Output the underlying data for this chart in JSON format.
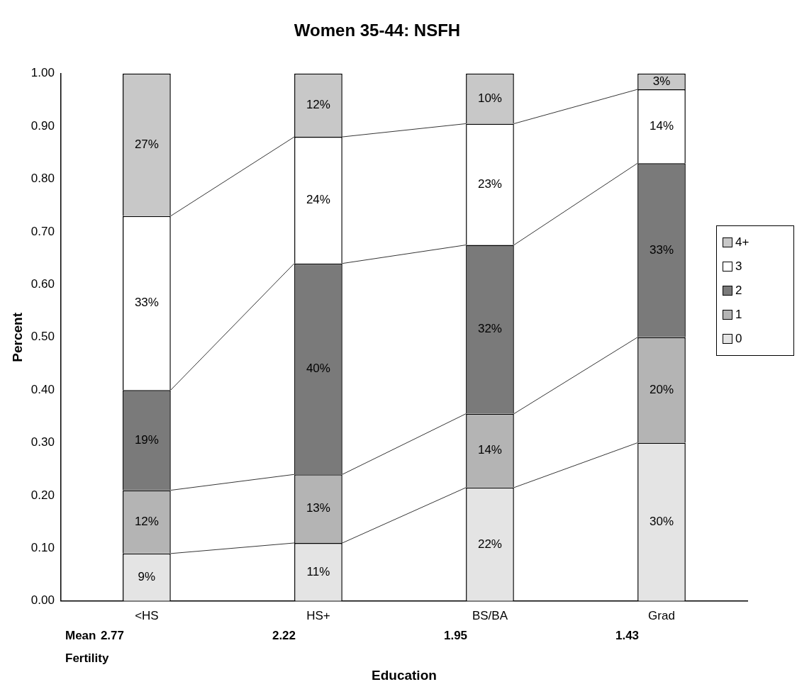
{
  "chart_data": {
    "type": "bar",
    "stacked": true,
    "title": "Women 35-44: NSFH",
    "xlabel": "Education",
    "ylabel": "Percent",
    "categories": [
      "<HS",
      "HS+",
      "BS/BA",
      "Grad"
    ],
    "series": [
      {
        "name": "0",
        "color": "#e4e4e4",
        "values": [
          0.09,
          0.11,
          0.215,
          0.3
        ],
        "value_labels": [
          "9%",
          "11%",
          "22%",
          "30%"
        ]
      },
      {
        "name": "1",
        "color": "#b4b4b4",
        "values": [
          0.12,
          0.13,
          0.14,
          0.2
        ],
        "value_labels": [
          "12%",
          "13%",
          "14%",
          "20%"
        ]
      },
      {
        "name": "2",
        "color": "#7a7a7a",
        "values": [
          0.19,
          0.4,
          0.32,
          0.33
        ],
        "value_labels": [
          "19%",
          "40%",
          "32%",
          "33%"
        ]
      },
      {
        "name": "3",
        "color": "#ffffff",
        "values": [
          0.33,
          0.24,
          0.23,
          0.14
        ],
        "value_labels": [
          "33%",
          "24%",
          "23%",
          "14%"
        ]
      },
      {
        "name": "4+",
        "color": "#c8c8c8",
        "values": [
          0.27,
          0.12,
          0.095,
          0.03
        ],
        "value_labels": [
          "27%",
          "12%",
          "10%",
          "3%"
        ]
      }
    ],
    "ylim": [
      0,
      1
    ],
    "yticks": [
      {
        "value": 0,
        "label": "0.00"
      },
      {
        "value": 0.1,
        "label": "0.10"
      },
      {
        "value": 0.2,
        "label": "0.20"
      },
      {
        "value": 0.3,
        "label": "0.30"
      },
      {
        "value": 0.4,
        "label": "0.40"
      },
      {
        "value": 0.5,
        "label": "0.50"
      },
      {
        "value": 0.6,
        "label": "0.60"
      },
      {
        "value": 0.7,
        "label": "0.70"
      },
      {
        "value": 0.8,
        "label": "0.80"
      },
      {
        "value": 0.9,
        "label": "0.90"
      },
      {
        "value": 1,
        "label": "1.00"
      }
    ],
    "grid": false,
    "legend": "right",
    "annotations": [
      "Mean",
      "Fertility",
      "2.77",
      "2.22",
      "1.95",
      "1.43"
    ]
  }
}
